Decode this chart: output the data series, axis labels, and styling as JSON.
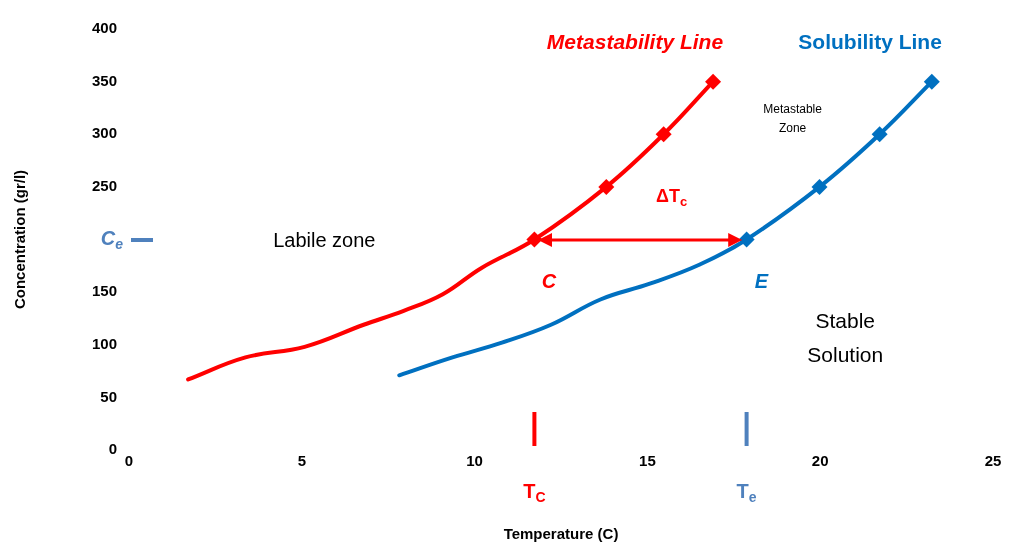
{
  "chart_data": {
    "type": "line",
    "xlabel": "Temperature (C)",
    "ylabel": "Concentration (gr/l)",
    "xlim": [
      0,
      25
    ],
    "xticks": [
      0,
      5,
      10,
      15,
      20,
      25
    ],
    "ylim": [
      0,
      400
    ],
    "yticks": [
      0,
      50,
      100,
      150,
      {
        "value": 200,
        "label": "C$_{e}$"
      },
      250,
      300,
      350,
      400
    ],
    "grid": false,
    "legend": false,
    "series": [
      {
        "name": "Metastability Line",
        "color": "#ff0000",
        "marker": "none",
        "x": [
          1.71,
          3.37,
          5.08,
          6.79,
          7.93,
          9.08,
          10.2,
          11.73,
          13.81,
          15.47,
          16.9
        ],
        "values": [
          67,
          88,
          98,
          119,
          132,
          148,
          173,
          200,
          250,
          300,
          350
        ]
      },
      {
        "type": "scatter",
        "color": "#ff0000",
        "marker": "diamond",
        "x": [
          11.73,
          13.81,
          15.47,
          16.9
        ],
        "values": [
          200,
          250,
          300,
          350
        ]
      },
      {
        "name": "Solubility Line",
        "color": "#0070c0",
        "marker": "none",
        "x": [
          7.82,
          9.36,
          10.79,
          12.21,
          13.64,
          15.07,
          16.5,
          17.87,
          19.98,
          21.72,
          23.23
        ],
        "values": [
          71,
          88,
          102,
          119,
          143,
          158,
          176,
          200,
          250,
          300,
          350
        ]
      },
      {
        "type": "scatter",
        "color": "#0070c0",
        "marker": "diamond",
        "x": [
          17.87,
          19.98,
          21.72,
          23.23
        ],
        "values": [
          200,
          250,
          300,
          350
        ]
      }
    ],
    "ref_lines": [
      {
        "axis": "x",
        "value": 11.73,
        "label": "T$_{C}$",
        "color": "#ff0000"
      },
      {
        "axis": "x",
        "value": 17.87,
        "label": "T$_{e}$",
        "color": "#4f81bd"
      }
    ],
    "annotations": [
      "Labile zone",
      "Metastable Zone",
      "Stable Solution",
      "ΔT$_{c}$",
      "C",
      "E"
    ]
  }
}
